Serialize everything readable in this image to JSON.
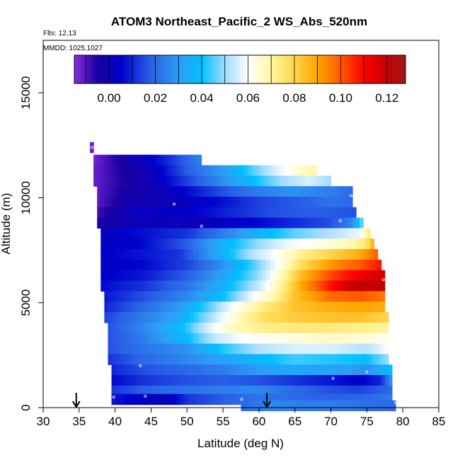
{
  "chart_data": {
    "type": "heatmap",
    "title": "ATOM3 Northeast_Pacific_2 WS_Abs_520nm",
    "subtitle_lines": [
      "Flts: 12,13",
      "MMDD: 1025,1027"
    ],
    "xlabel": "Latitude (deg N)",
    "ylabel": "Altitude (m)",
    "xlim": [
      30,
      85
    ],
    "ylim": [
      0,
      17500
    ],
    "x_ticks": [
      30,
      35,
      40,
      45,
      50,
      55,
      60,
      65,
      70,
      75,
      80,
      85
    ],
    "y_ticks": [
      0,
      5000,
      10000,
      15000
    ],
    "grid": false,
    "colorbar": {
      "range": [
        -0.015,
        0.128
      ],
      "ticks": [
        0.0,
        0.02,
        0.04,
        0.06,
        0.08,
        0.1,
        0.12
      ],
      "tick_labels": [
        "0.00",
        "0.02",
        "0.04",
        "0.06",
        "0.08",
        "0.10",
        "0.12"
      ],
      "placement": "top-inside",
      "stops": [
        {
          "v": -0.015,
          "c": "#8a2be2"
        },
        {
          "v": -0.005,
          "c": "#1a00a0"
        },
        {
          "v": 0.005,
          "c": "#0000cc"
        },
        {
          "v": 0.018,
          "c": "#2a5fe6"
        },
        {
          "v": 0.03,
          "c": "#2e9cf5"
        },
        {
          "v": 0.04,
          "c": "#00c0ff"
        },
        {
          "v": 0.05,
          "c": "#9fdcff"
        },
        {
          "v": 0.06,
          "c": "#ffffff"
        },
        {
          "v": 0.07,
          "c": "#fff7a0"
        },
        {
          "v": 0.08,
          "c": "#ffd54a"
        },
        {
          "v": 0.09,
          "c": "#ffa500"
        },
        {
          "v": 0.1,
          "c": "#ff5a00"
        },
        {
          "v": 0.11,
          "c": "#ff0000"
        },
        {
          "v": 0.12,
          "c": "#c40000"
        },
        {
          "v": 0.128,
          "c": "#9e1a1a"
        }
      ]
    },
    "altitude_bins": [
      {
        "alt": 12400,
        "lat_min": 36.5,
        "lat_max": 37.0,
        "points": [
          [
            36.8,
            -0.012
          ]
        ]
      },
      {
        "alt": 11800,
        "lat_min": 37.0,
        "lat_max": 52.0,
        "points": [
          [
            37.0,
            -0.013
          ],
          [
            40.0,
            -0.006
          ],
          [
            45.0,
            0.004
          ],
          [
            48.0,
            0.013
          ],
          [
            52.0,
            0.025
          ]
        ]
      },
      {
        "alt": 11300,
        "lat_min": 37.0,
        "lat_max": 68.0,
        "points": [
          [
            37.0,
            -0.012
          ],
          [
            41.0,
            -0.005
          ],
          [
            45.0,
            0.0
          ],
          [
            50.0,
            0.018
          ],
          [
            55.0,
            0.03
          ],
          [
            60.0,
            0.048
          ],
          [
            63.0,
            0.058
          ],
          [
            66.0,
            0.066
          ],
          [
            68.0,
            0.07
          ]
        ]
      },
      {
        "alt": 10800,
        "lat_min": 37.0,
        "lat_max": 70.0,
        "points": [
          [
            37.0,
            -0.012
          ],
          [
            40.0,
            -0.007
          ],
          [
            44.0,
            -0.002
          ],
          [
            48.0,
            0.008
          ],
          [
            53.0,
            0.022
          ],
          [
            58.0,
            0.036
          ],
          [
            63.0,
            0.05
          ],
          [
            67.0,
            0.056
          ],
          [
            70.0,
            0.05
          ]
        ]
      },
      {
        "alt": 10300,
        "lat_min": 37.5,
        "lat_max": 73.0,
        "points": [
          [
            37.5,
            -0.011
          ],
          [
            42.0,
            -0.003
          ],
          [
            46.0,
            -0.001
          ],
          [
            50.0,
            0.006
          ],
          [
            55.0,
            0.016
          ],
          [
            60.0,
            0.024
          ],
          [
            65.0,
            0.028
          ],
          [
            70.0,
            0.024
          ],
          [
            73.0,
            0.02
          ]
        ]
      },
      {
        "alt": 9800,
        "lat_min": 37.5,
        "lat_max": 73.0,
        "points": [
          [
            37.5,
            -0.011
          ],
          [
            42.0,
            -0.001
          ],
          [
            48.0,
            0.0
          ],
          [
            54.0,
            0.006
          ],
          [
            60.0,
            0.014
          ],
          [
            66.0,
            0.018
          ],
          [
            70.0,
            0.022
          ],
          [
            73.0,
            0.02
          ]
        ]
      },
      {
        "alt": 9300,
        "lat_min": 37.5,
        "lat_max": 73.5,
        "points": [
          [
            37.5,
            -0.008
          ],
          [
            43.0,
            0.002
          ],
          [
            50.0,
            0.004
          ],
          [
            56.0,
            0.01
          ],
          [
            62.0,
            0.016
          ],
          [
            68.0,
            0.018
          ],
          [
            73.5,
            0.016
          ]
        ]
      },
      {
        "alt": 8800,
        "lat_min": 37.5,
        "lat_max": 74.5,
        "points": [
          [
            37.5,
            -0.004
          ],
          [
            45.0,
            0.001
          ],
          [
            52.0,
            0.0
          ],
          [
            58.0,
            0.004
          ],
          [
            64.0,
            0.01
          ],
          [
            70.0,
            0.016
          ],
          [
            73.0,
            0.026
          ],
          [
            74.5,
            0.05
          ]
        ]
      },
      {
        "alt": 8300,
        "lat_min": 38.0,
        "lat_max": 75.5,
        "points": [
          [
            38.0,
            0.002
          ],
          [
            45.0,
            0.008
          ],
          [
            50.0,
            0.012
          ],
          [
            55.0,
            0.024
          ],
          [
            60.0,
            0.036
          ],
          [
            65.0,
            0.046
          ],
          [
            70.0,
            0.052
          ],
          [
            74.0,
            0.058
          ],
          [
            75.5,
            0.075
          ]
        ]
      },
      {
        "alt": 7800,
        "lat_min": 38.0,
        "lat_max": 76.0,
        "points": [
          [
            38.0,
            0.002
          ],
          [
            44.0,
            0.006
          ],
          [
            50.0,
            0.018
          ],
          [
            55.0,
            0.036
          ],
          [
            60.0,
            0.05
          ],
          [
            64.0,
            0.058
          ],
          [
            68.0,
            0.062
          ],
          [
            72.0,
            0.066
          ],
          [
            75.0,
            0.075
          ],
          [
            76.0,
            0.09
          ]
        ]
      },
      {
        "alt": 7300,
        "lat_min": 38.0,
        "lat_max": 76.5,
        "points": [
          [
            38.0,
            0.004
          ],
          [
            44.0,
            0.008
          ],
          [
            49.0,
            0.012
          ],
          [
            54.0,
            0.032
          ],
          [
            59.0,
            0.052
          ],
          [
            63.0,
            0.062
          ],
          [
            66.0,
            0.072
          ],
          [
            70.0,
            0.08
          ],
          [
            74.0,
            0.088
          ],
          [
            76.5,
            0.1
          ]
        ]
      },
      {
        "alt": 6800,
        "lat_min": 38.0,
        "lat_max": 77.0,
        "points": [
          [
            38.0,
            0.003
          ],
          [
            44.0,
            0.006
          ],
          [
            50.0,
            0.014
          ],
          [
            55.0,
            0.028
          ],
          [
            60.0,
            0.048
          ],
          [
            63.0,
            0.062
          ],
          [
            66.0,
            0.078
          ],
          [
            70.0,
            0.092
          ],
          [
            74.0,
            0.1
          ],
          [
            77.0,
            0.108
          ]
        ]
      },
      {
        "alt": 6300,
        "lat_min": 38.0,
        "lat_max": 77.5,
        "points": [
          [
            38.0,
            0.004
          ],
          [
            44.0,
            0.008
          ],
          [
            50.0,
            0.018
          ],
          [
            55.0,
            0.032
          ],
          [
            60.0,
            0.05
          ],
          [
            63.0,
            0.066
          ],
          [
            66.0,
            0.086
          ],
          [
            70.0,
            0.102
          ],
          [
            73.0,
            0.11
          ],
          [
            77.5,
            0.118
          ]
        ]
      },
      {
        "alt": 5800,
        "lat_min": 38.0,
        "lat_max": 77.5,
        "points": [
          [
            38.0,
            0.006
          ],
          [
            44.0,
            0.012
          ],
          [
            50.0,
            0.022
          ],
          [
            55.0,
            0.036
          ],
          [
            60.0,
            0.054
          ],
          [
            63.0,
            0.07
          ],
          [
            66.0,
            0.09
          ],
          [
            70.0,
            0.108
          ],
          [
            73.0,
            0.12
          ],
          [
            77.5,
            0.12
          ]
        ]
      },
      {
        "alt": 5300,
        "lat_min": 38.5,
        "lat_max": 77.5,
        "points": [
          [
            38.5,
            0.008
          ],
          [
            44.0,
            0.016
          ],
          [
            50.0,
            0.026
          ],
          [
            55.0,
            0.04
          ],
          [
            59.0,
            0.058
          ],
          [
            62.0,
            0.068
          ],
          [
            65.0,
            0.084
          ],
          [
            70.0,
            0.098
          ],
          [
            74.0,
            0.1
          ],
          [
            77.5,
            0.096
          ]
        ]
      },
      {
        "alt": 4800,
        "lat_min": 38.5,
        "lat_max": 77.5,
        "points": [
          [
            38.5,
            0.01
          ],
          [
            44.0,
            0.02
          ],
          [
            49.0,
            0.03
          ],
          [
            53.0,
            0.045
          ],
          [
            57.0,
            0.062
          ],
          [
            61.0,
            0.074
          ],
          [
            65.0,
            0.084
          ],
          [
            70.0,
            0.088
          ],
          [
            74.0,
            0.09
          ],
          [
            77.5,
            0.088
          ]
        ]
      },
      {
        "alt": 4300,
        "lat_min": 38.5,
        "lat_max": 78.0,
        "points": [
          [
            38.5,
            0.014
          ],
          [
            44.0,
            0.024
          ],
          [
            49.0,
            0.034
          ],
          [
            53.0,
            0.05
          ],
          [
            57.0,
            0.066
          ],
          [
            61.0,
            0.078
          ],
          [
            65.0,
            0.082
          ],
          [
            70.0,
            0.084
          ],
          [
            74.0,
            0.084
          ],
          [
            78.0,
            0.08
          ]
        ]
      },
      {
        "alt": 3800,
        "lat_min": 39.0,
        "lat_max": 78.0,
        "points": [
          [
            39.0,
            0.016
          ],
          [
            44.0,
            0.026
          ],
          [
            49.0,
            0.038
          ],
          [
            53.0,
            0.056
          ],
          [
            56.0,
            0.066
          ],
          [
            60.0,
            0.072
          ],
          [
            65.0,
            0.074
          ],
          [
            70.0,
            0.074
          ],
          [
            75.0,
            0.072
          ],
          [
            78.0,
            0.07
          ]
        ]
      },
      {
        "alt": 3300,
        "lat_min": 39.0,
        "lat_max": 78.0,
        "points": [
          [
            39.0,
            0.016
          ],
          [
            44.0,
            0.024
          ],
          [
            49.0,
            0.036
          ],
          [
            54.0,
            0.054
          ],
          [
            58.0,
            0.06
          ],
          [
            62.0,
            0.062
          ],
          [
            66.0,
            0.064
          ],
          [
            70.0,
            0.066
          ],
          [
            75.0,
            0.064
          ],
          [
            78.0,
            0.062
          ]
        ]
      },
      {
        "alt": 2800,
        "lat_min": 39.0,
        "lat_max": 78.0,
        "points": [
          [
            39.0,
            0.016
          ],
          [
            44.0,
            0.022
          ],
          [
            50.0,
            0.028
          ],
          [
            55.0,
            0.042
          ],
          [
            60.0,
            0.052
          ],
          [
            65.0,
            0.056
          ],
          [
            70.0,
            0.056
          ],
          [
            75.0,
            0.052
          ],
          [
            78.0,
            0.06
          ]
        ]
      },
      {
        "alt": 2300,
        "lat_min": 39.0,
        "lat_max": 78.0,
        "points": [
          [
            39.0,
            0.012
          ],
          [
            44.0,
            0.02
          ],
          [
            50.0,
            0.026
          ],
          [
            55.0,
            0.032
          ],
          [
            60.0,
            0.038
          ],
          [
            65.0,
            0.044
          ],
          [
            70.0,
            0.042
          ],
          [
            75.0,
            0.04
          ],
          [
            78.0,
            0.05
          ]
        ]
      },
      {
        "alt": 1800,
        "lat_min": 39.5,
        "lat_max": 78.5,
        "points": [
          [
            39.5,
            0.01
          ],
          [
            44.0,
            0.016
          ],
          [
            50.0,
            0.02
          ],
          [
            55.0,
            0.024
          ],
          [
            60.0,
            0.03
          ],
          [
            65.0,
            0.034
          ],
          [
            70.0,
            0.032
          ],
          [
            75.0,
            0.028
          ],
          [
            78.5,
            0.04
          ]
        ]
      },
      {
        "alt": 1300,
        "lat_min": 39.5,
        "lat_max": 78.5,
        "points": [
          [
            39.5,
            0.006
          ],
          [
            44.0,
            0.012
          ],
          [
            50.0,
            0.016
          ],
          [
            55.0,
            0.018
          ],
          [
            60.0,
            0.016
          ],
          [
            65.0,
            0.012
          ],
          [
            70.0,
            0.008
          ],
          [
            74.0,
            0.004
          ],
          [
            77.0,
            0.01
          ],
          [
            78.5,
            0.03
          ]
        ]
      },
      {
        "alt": 800,
        "lat_min": 39.5,
        "lat_max": 78.5,
        "points": [
          [
            39.5,
            0.012
          ],
          [
            44.0,
            0.018
          ],
          [
            50.0,
            0.022
          ],
          [
            55.0,
            0.024
          ],
          [
            60.0,
            0.026
          ],
          [
            65.0,
            0.02
          ],
          [
            70.0,
            0.016
          ],
          [
            74.0,
            0.014
          ],
          [
            78.5,
            0.02
          ]
        ]
      },
      {
        "alt": 400,
        "lat_min": 39.5,
        "lat_max": 78.5,
        "points": [
          [
            39.5,
            0.008
          ],
          [
            43.0,
            0.004
          ],
          [
            47.0,
            0.0
          ],
          [
            50.0,
            0.012
          ],
          [
            55.0,
            0.018
          ],
          [
            60.0,
            0.022
          ],
          [
            65.0,
            0.02
          ],
          [
            70.0,
            0.018
          ],
          [
            75.0,
            0.02
          ],
          [
            78.5,
            0.024
          ]
        ]
      },
      {
        "alt": 100,
        "lat_min": 57.5,
        "lat_max": 79.0,
        "points": [
          [
            57.5,
            0.02
          ],
          [
            62.0,
            0.026
          ],
          [
            66.0,
            0.024
          ],
          [
            70.0,
            0.024
          ],
          [
            74.0,
            0.022
          ],
          [
            79.0,
            0.02
          ]
        ]
      }
    ],
    "sample_points": [
      [
        36.8,
        12400
      ],
      [
        48.2,
        9700
      ],
      [
        52.0,
        8650
      ],
      [
        72.8,
        10100
      ],
      [
        71.3,
        8900
      ],
      [
        77.3,
        6100
      ],
      [
        43.5,
        2000
      ],
      [
        75.0,
        1700
      ],
      [
        70.3,
        1400
      ],
      [
        39.8,
        500
      ],
      [
        44.2,
        550
      ],
      [
        57.6,
        400
      ],
      [
        79.0,
        250
      ]
    ],
    "arrows": [
      34.6,
      61.1
    ]
  }
}
